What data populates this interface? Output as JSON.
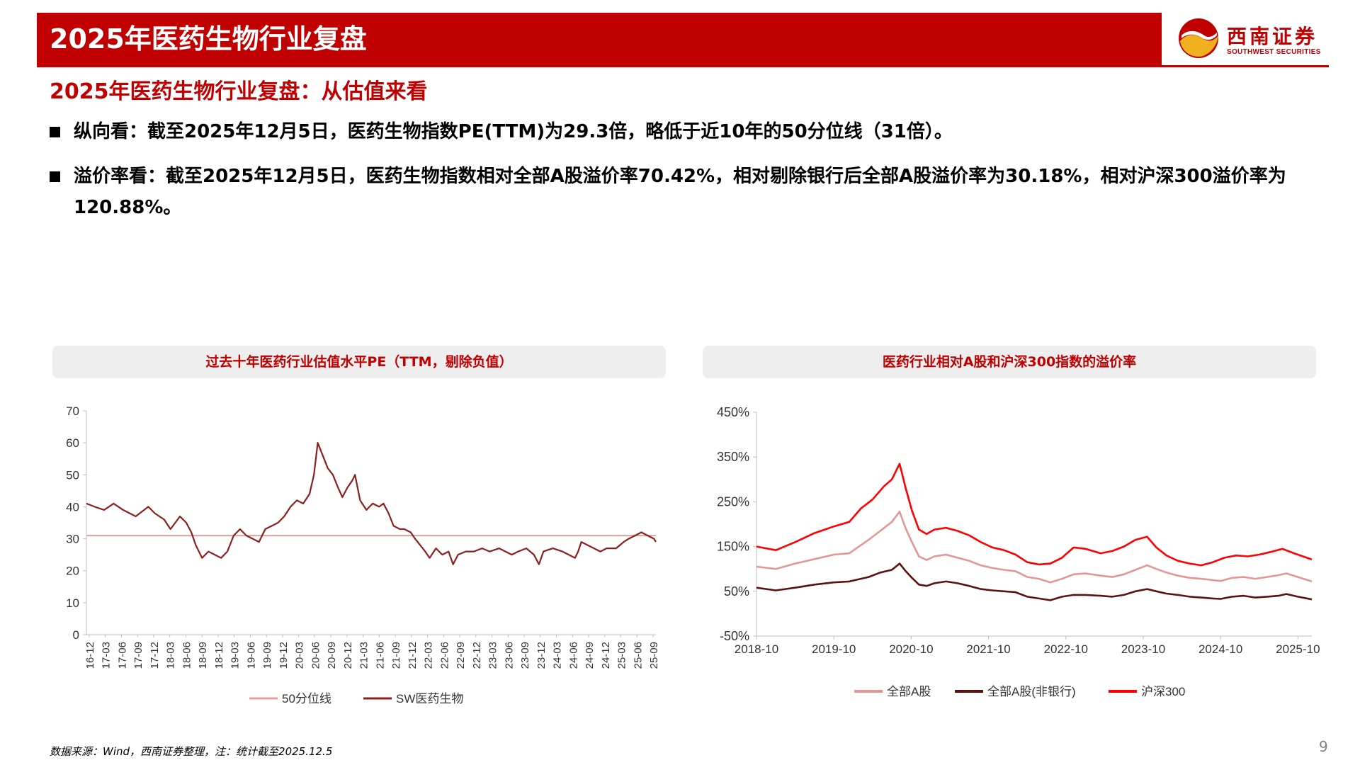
{
  "header": {
    "title": "2025年医药生物行业复盘"
  },
  "logo": {
    "cn": "西南证券",
    "en": "SOUTHWEST SECURITIES"
  },
  "subtitle": "2025年医药生物行业复盘：从估值来看",
  "bullets": [
    "纵向看：截至2025年12月5日，医药生物指数PE(TTM)为29.3倍，略低于近10年的50分位线（31倍）。",
    "溢价率看：截至2025年12月5日，医药生物指数相对全部A股溢价率70.42%，相对剔除银行后全部A股溢价率为30.18%，相对沪深300溢价率为120.88%。"
  ],
  "footer_note": "数据来源：Wind，西南证券整理，注：统计截至2025.12.5",
  "page_number": "9",
  "chart_data": [
    {
      "type": "line",
      "title": "过去十年医药行业估值水平PE（TTM，剔除负值）",
      "ylim": [
        0,
        70
      ],
      "y_ticks": [
        "0",
        "10",
        "20",
        "30",
        "40",
        "50",
        "60",
        "70"
      ],
      "x_ticks": [
        "16-12",
        "17-03",
        "17-06",
        "17-09",
        "17-12",
        "18-03",
        "18-06",
        "18-09",
        "18-12",
        "19-03",
        "19-06",
        "19-09",
        "19-12",
        "20-03",
        "20-06",
        "20-09",
        "20-12",
        "21-03",
        "21-06",
        "21-09",
        "21-12",
        "22-03",
        "22-06",
        "22-09",
        "22-12",
        "23-03",
        "23-06",
        "23-09",
        "23-12",
        "24-03",
        "24-06",
        "24-09",
        "24-12",
        "25-03",
        "25-06",
        "25-09"
      ],
      "x_range": [
        2016.92,
        2025.93
      ],
      "legend_position": "bottom",
      "series": [
        {
          "name": "50分位线",
          "color": "#e3a0a0",
          "points": [
            [
              2016.92,
              31
            ],
            [
              2025.93,
              31
            ]
          ]
        },
        {
          "name": "SW医药生物",
          "color": "#8b2020",
          "points": [
            [
              2016.92,
              41
            ],
            [
              2017.05,
              40
            ],
            [
              2017.2,
              39
            ],
            [
              2017.35,
              41
            ],
            [
              2017.5,
              39
            ],
            [
              2017.7,
              37
            ],
            [
              2017.9,
              40
            ],
            [
              2018.0,
              38
            ],
            [
              2018.15,
              36
            ],
            [
              2018.25,
              33
            ],
            [
              2018.4,
              37
            ],
            [
              2018.5,
              35
            ],
            [
              2018.58,
              32
            ],
            [
              2018.65,
              28
            ],
            [
              2018.75,
              24
            ],
            [
              2018.85,
              26
            ],
            [
              2018.95,
              25
            ],
            [
              2019.05,
              24
            ],
            [
              2019.15,
              26
            ],
            [
              2019.25,
              31
            ],
            [
              2019.35,
              33
            ],
            [
              2019.45,
              31
            ],
            [
              2019.55,
              30
            ],
            [
              2019.65,
              29
            ],
            [
              2019.75,
              33
            ],
            [
              2019.85,
              34
            ],
            [
              2019.95,
              35
            ],
            [
              2020.05,
              37
            ],
            [
              2020.15,
              40
            ],
            [
              2020.25,
              42
            ],
            [
              2020.35,
              41
            ],
            [
              2020.45,
              44
            ],
            [
              2020.52,
              50
            ],
            [
              2020.58,
              60
            ],
            [
              2020.66,
              56
            ],
            [
              2020.74,
              52
            ],
            [
              2020.82,
              50
            ],
            [
              2020.9,
              46
            ],
            [
              2020.97,
              43
            ],
            [
              2021.05,
              46
            ],
            [
              2021.12,
              48
            ],
            [
              2021.17,
              50
            ],
            [
              2021.25,
              42
            ],
            [
              2021.35,
              39
            ],
            [
              2021.45,
              41
            ],
            [
              2021.55,
              40
            ],
            [
              2021.62,
              41
            ],
            [
              2021.7,
              38
            ],
            [
              2021.78,
              34
            ],
            [
              2021.88,
              33
            ],
            [
              2021.95,
              33
            ],
            [
              2022.05,
              32
            ],
            [
              2022.12,
              30
            ],
            [
              2022.2,
              28
            ],
            [
              2022.28,
              26
            ],
            [
              2022.35,
              24
            ],
            [
              2022.45,
              27
            ],
            [
              2022.55,
              25
            ],
            [
              2022.65,
              26
            ],
            [
              2022.72,
              22
            ],
            [
              2022.8,
              25
            ],
            [
              2022.92,
              26
            ],
            [
              2023.05,
              26
            ],
            [
              2023.18,
              27
            ],
            [
              2023.3,
              26
            ],
            [
              2023.45,
              27
            ],
            [
              2023.55,
              26
            ],
            [
              2023.65,
              25
            ],
            [
              2023.75,
              26
            ],
            [
              2023.88,
              27
            ],
            [
              2024.0,
              25
            ],
            [
              2024.08,
              22
            ],
            [
              2024.15,
              26
            ],
            [
              2024.3,
              27
            ],
            [
              2024.45,
              26
            ],
            [
              2024.55,
              25
            ],
            [
              2024.65,
              24
            ],
            [
              2024.7,
              26
            ],
            [
              2024.75,
              29
            ],
            [
              2024.85,
              28
            ],
            [
              2024.95,
              27
            ],
            [
              2025.05,
              26
            ],
            [
              2025.15,
              27
            ],
            [
              2025.3,
              27
            ],
            [
              2025.42,
              29
            ],
            [
              2025.5,
              30
            ],
            [
              2025.6,
              31
            ],
            [
              2025.7,
              32
            ],
            [
              2025.8,
              31
            ],
            [
              2025.9,
              30
            ],
            [
              2025.93,
              29
            ]
          ]
        }
      ]
    },
    {
      "type": "line",
      "title": "医药行业相对A股和沪深300指数的溢价率",
      "ylim": [
        -50,
        450
      ],
      "y_ticks": [
        "-50%",
        "50%",
        "150%",
        "250%",
        "350%",
        "450%"
      ],
      "x_ticks": [
        "2018-10",
        "2019-10",
        "2020-10",
        "2021-10",
        "2022-10",
        "2023-10",
        "2024-10",
        "2025-10"
      ],
      "x_range": [
        2018.75,
        2025.93
      ],
      "legend_position": "bottom",
      "series": [
        {
          "name": "全部A股",
          "color": "#e39696",
          "points": [
            [
              2018.75,
              105
            ],
            [
              2019.0,
              100
            ],
            [
              2019.25,
              112
            ],
            [
              2019.5,
              122
            ],
            [
              2019.75,
              132
            ],
            [
              2019.95,
              135
            ],
            [
              2020.2,
              165
            ],
            [
              2020.35,
              185
            ],
            [
              2020.5,
              205
            ],
            [
              2020.6,
              228
            ],
            [
              2020.68,
              190
            ],
            [
              2020.76,
              160
            ],
            [
              2020.85,
              128
            ],
            [
              2020.95,
              120
            ],
            [
              2021.05,
              128
            ],
            [
              2021.2,
              132
            ],
            [
              2021.35,
              125
            ],
            [
              2021.5,
              118
            ],
            [
              2021.65,
              108
            ],
            [
              2021.8,
              102
            ],
            [
              2021.95,
              98
            ],
            [
              2022.1,
              95
            ],
            [
              2022.25,
              82
            ],
            [
              2022.4,
              78
            ],
            [
              2022.55,
              70
            ],
            [
              2022.7,
              78
            ],
            [
              2022.85,
              88
            ],
            [
              2023.0,
              90
            ],
            [
              2023.2,
              85
            ],
            [
              2023.35,
              82
            ],
            [
              2023.5,
              88
            ],
            [
              2023.65,
              98
            ],
            [
              2023.8,
              108
            ],
            [
              2023.92,
              100
            ],
            [
              2024.05,
              92
            ],
            [
              2024.2,
              85
            ],
            [
              2024.35,
              80
            ],
            [
              2024.5,
              78
            ],
            [
              2024.65,
              75
            ],
            [
              2024.75,
              73
            ],
            [
              2024.9,
              80
            ],
            [
              2025.05,
              82
            ],
            [
              2025.2,
              78
            ],
            [
              2025.35,
              82
            ],
            [
              2025.5,
              86
            ],
            [
              2025.6,
              90
            ],
            [
              2025.75,
              82
            ],
            [
              2025.93,
              72
            ]
          ]
        },
        {
          "name": "全部A股(非银行)",
          "color": "#5a1212",
          "points": [
            [
              2018.75,
              58
            ],
            [
              2019.0,
              52
            ],
            [
              2019.25,
              58
            ],
            [
              2019.5,
              65
            ],
            [
              2019.75,
              70
            ],
            [
              2019.95,
              72
            ],
            [
              2020.2,
              82
            ],
            [
              2020.35,
              92
            ],
            [
              2020.5,
              98
            ],
            [
              2020.6,
              112
            ],
            [
              2020.68,
              95
            ],
            [
              2020.76,
              80
            ],
            [
              2020.85,
              65
            ],
            [
              2020.95,
              62
            ],
            [
              2021.05,
              68
            ],
            [
              2021.2,
              72
            ],
            [
              2021.35,
              68
            ],
            [
              2021.5,
              62
            ],
            [
              2021.65,
              55
            ],
            [
              2021.8,
              52
            ],
            [
              2021.95,
              50
            ],
            [
              2022.1,
              48
            ],
            [
              2022.25,
              38
            ],
            [
              2022.4,
              34
            ],
            [
              2022.55,
              30
            ],
            [
              2022.7,
              38
            ],
            [
              2022.85,
              42
            ],
            [
              2023.0,
              42
            ],
            [
              2023.2,
              40
            ],
            [
              2023.35,
              38
            ],
            [
              2023.5,
              42
            ],
            [
              2023.65,
              50
            ],
            [
              2023.8,
              55
            ],
            [
              2023.92,
              50
            ],
            [
              2024.05,
              45
            ],
            [
              2024.2,
              42
            ],
            [
              2024.35,
              38
            ],
            [
              2024.5,
              36
            ],
            [
              2024.65,
              34
            ],
            [
              2024.75,
              33
            ],
            [
              2024.9,
              38
            ],
            [
              2025.05,
              40
            ],
            [
              2025.2,
              36
            ],
            [
              2025.35,
              38
            ],
            [
              2025.5,
              40
            ],
            [
              2025.6,
              44
            ],
            [
              2025.75,
              38
            ],
            [
              2025.93,
              32
            ]
          ]
        },
        {
          "name": "沪深300",
          "color": "#ff0000",
          "points": [
            [
              2018.75,
              150
            ],
            [
              2019.0,
              142
            ],
            [
              2019.25,
              160
            ],
            [
              2019.5,
              180
            ],
            [
              2019.75,
              195
            ],
            [
              2019.95,
              205
            ],
            [
              2020.1,
              235
            ],
            [
              2020.25,
              255
            ],
            [
              2020.4,
              285
            ],
            [
              2020.5,
              300
            ],
            [
              2020.6,
              335
            ],
            [
              2020.68,
              280
            ],
            [
              2020.76,
              230
            ],
            [
              2020.85,
              188
            ],
            [
              2020.95,
              178
            ],
            [
              2021.05,
              188
            ],
            [
              2021.2,
              192
            ],
            [
              2021.35,
              185
            ],
            [
              2021.5,
              175
            ],
            [
              2021.65,
              160
            ],
            [
              2021.8,
              148
            ],
            [
              2021.95,
              142
            ],
            [
              2022.1,
              132
            ],
            [
              2022.25,
              115
            ],
            [
              2022.4,
              110
            ],
            [
              2022.55,
              112
            ],
            [
              2022.7,
              125
            ],
            [
              2022.85,
              148
            ],
            [
              2023.0,
              145
            ],
            [
              2023.2,
              135
            ],
            [
              2023.35,
              140
            ],
            [
              2023.5,
              150
            ],
            [
              2023.65,
              165
            ],
            [
              2023.8,
              172
            ],
            [
              2023.92,
              148
            ],
            [
              2024.05,
              130
            ],
            [
              2024.2,
              118
            ],
            [
              2024.35,
              112
            ],
            [
              2024.5,
              108
            ],
            [
              2024.65,
              115
            ],
            [
              2024.8,
              125
            ],
            [
              2024.95,
              130
            ],
            [
              2025.1,
              128
            ],
            [
              2025.25,
              132
            ],
            [
              2025.4,
              138
            ],
            [
              2025.55,
              145
            ],
            [
              2025.7,
              135
            ],
            [
              2025.93,
              121
            ]
          ]
        }
      ]
    }
  ]
}
